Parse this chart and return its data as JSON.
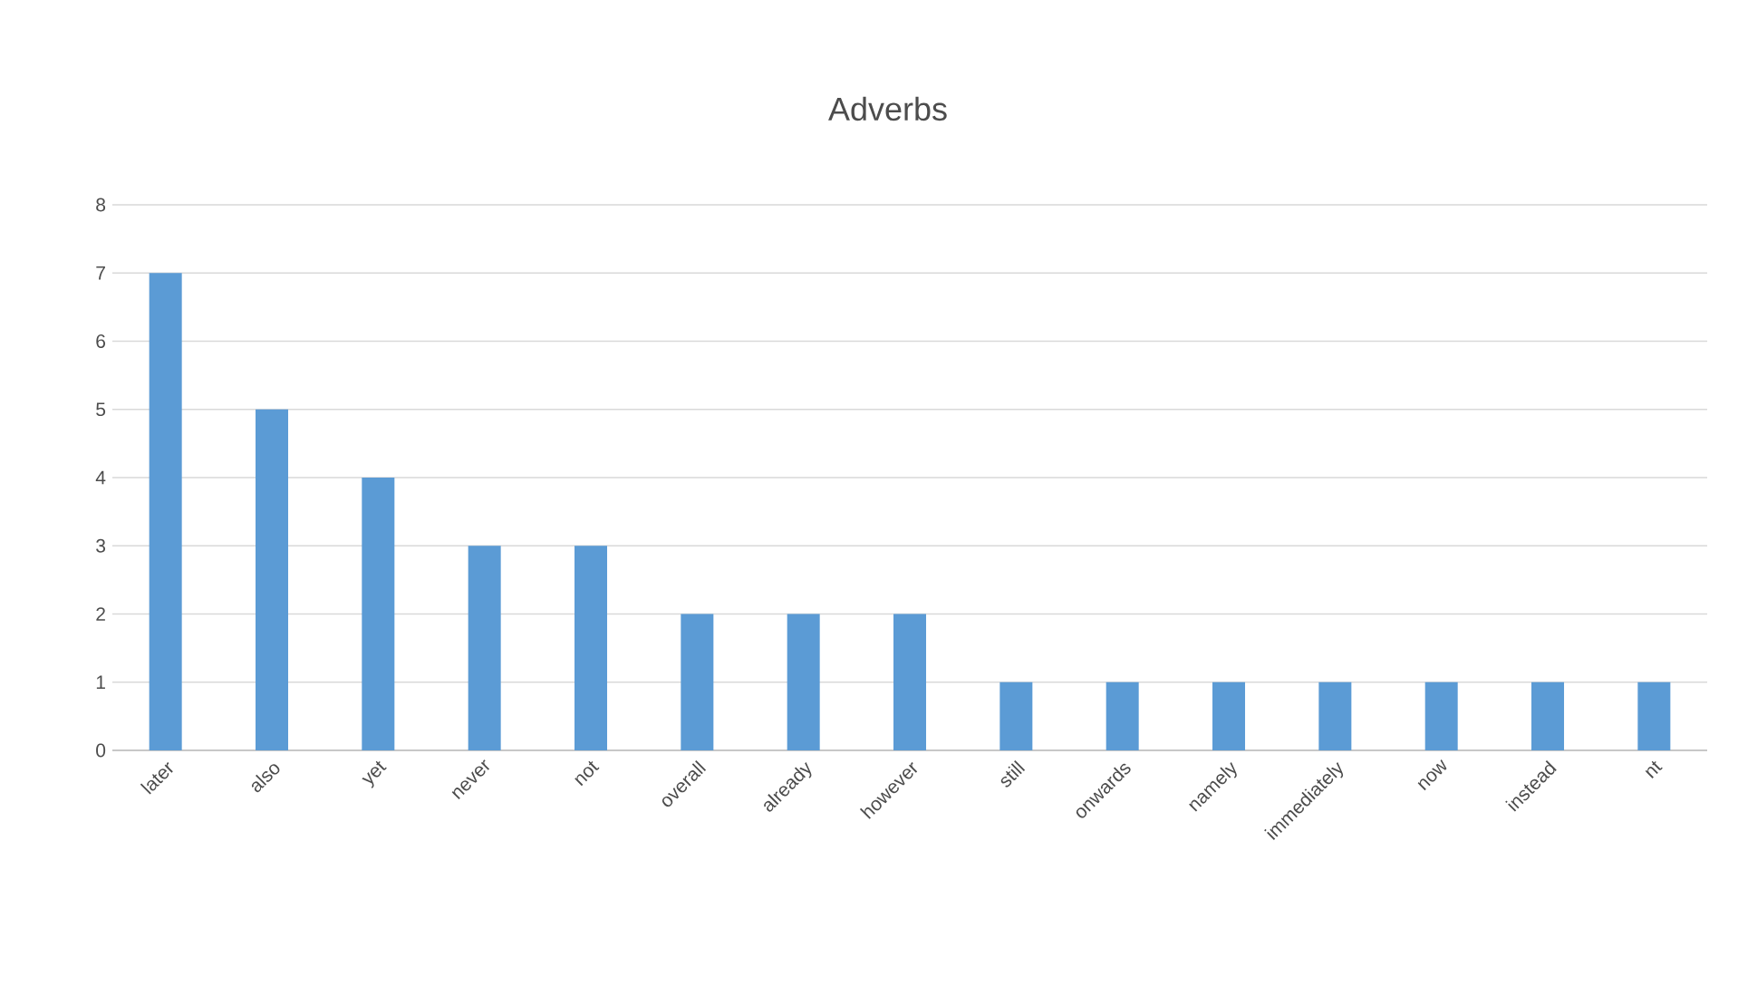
{
  "chart_data": {
    "type": "bar",
    "title": "Adverbs",
    "categories": [
      "later",
      "also",
      "yet",
      "never",
      "not",
      "overall",
      "already",
      "however",
      "still",
      "onwards",
      "namely",
      "immediately",
      "now",
      "instead",
      "nt"
    ],
    "values": [
      7,
      5,
      4,
      3,
      3,
      2,
      2,
      2,
      1,
      1,
      1,
      1,
      1,
      1,
      1
    ],
    "color": "#5b9bd5",
    "ylim": [
      0,
      8
    ],
    "yticks": [
      0,
      1,
      2,
      3,
      4,
      5,
      6,
      7,
      8
    ],
    "grid": "y"
  }
}
